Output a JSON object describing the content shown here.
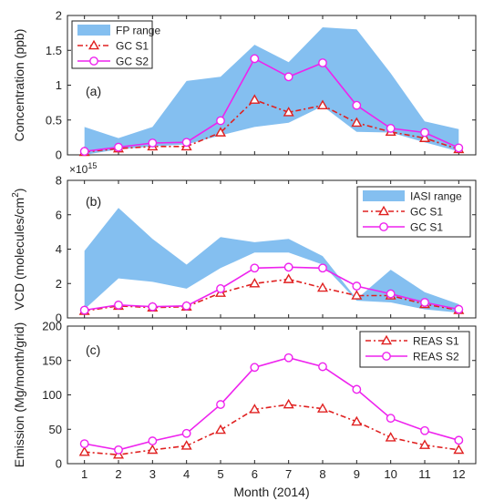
{
  "chart_data": [
    {
      "type": "area",
      "panel_label": "(a)",
      "xlabel": "",
      "ylabel": "Concentration (ppb)",
      "x": [
        1,
        2,
        3,
        4,
        5,
        6,
        7,
        8,
        9,
        10,
        11,
        12
      ],
      "xlim": [
        0.5,
        12.5
      ],
      "ylim": [
        0,
        2
      ],
      "yticks": [
        0,
        0.5,
        1,
        1.5,
        2
      ],
      "ytick_labels": [
        "0",
        "0.5",
        "1",
        "1.5",
        "2"
      ],
      "range_band": {
        "name": "FP range",
        "color": "#84bff0",
        "low": [
          0.0,
          0.08,
          0.12,
          0.15,
          0.28,
          0.4,
          0.46,
          0.7,
          0.33,
          0.32,
          0.18,
          0.05
        ],
        "high": [
          0.4,
          0.24,
          0.4,
          1.06,
          1.12,
          1.58,
          1.33,
          1.83,
          1.8,
          1.17,
          0.48,
          0.37
        ]
      },
      "series": [
        {
          "name": "GC S1",
          "color": "#e02020",
          "dash": true,
          "marker": "triangle",
          "values": [
            0.04,
            0.09,
            0.12,
            0.12,
            0.32,
            0.79,
            0.61,
            0.71,
            0.46,
            0.33,
            0.24,
            0.08
          ]
        },
        {
          "name": "GC S2",
          "color": "#ee22ee",
          "dash": false,
          "marker": "circle",
          "values": [
            0.05,
            0.11,
            0.17,
            0.18,
            0.49,
            1.38,
            1.12,
            1.32,
            0.71,
            0.38,
            0.32,
            0.1
          ]
        }
      ],
      "legend_position": "top-left"
    },
    {
      "type": "area",
      "panel_label": "(b)",
      "exponent_label": "×10",
      "exponent_power": "15",
      "xlabel": "",
      "ylabel_main": "VCD (molecules/cm",
      "ylabel_sup": "2",
      "ylabel_end": ")",
      "x": [
        1,
        2,
        3,
        4,
        5,
        6,
        7,
        8,
        9,
        10,
        11,
        12
      ],
      "xlim": [
        0.5,
        12.5
      ],
      "ylim": [
        0,
        8
      ],
      "yticks": [
        0,
        2,
        4,
        6,
        8
      ],
      "ytick_labels": [
        "0",
        "2",
        "4",
        "6",
        "8"
      ],
      "range_band": {
        "name": "IASI range",
        "color": "#84bff0",
        "low": [
          0.5,
          2.3,
          2.1,
          1.7,
          2.9,
          3.8,
          3.8,
          3.1,
          1.0,
          0.9,
          0.5,
          0.3
        ],
        "high": [
          3.9,
          6.4,
          4.6,
          3.1,
          4.7,
          4.4,
          4.6,
          3.6,
          1.1,
          2.8,
          1.5,
          0.8
        ]
      },
      "series": [
        {
          "name": "GC S1",
          "color": "#e02020",
          "dash": true,
          "marker": "triangle",
          "values": [
            0.4,
            0.7,
            0.6,
            0.65,
            1.45,
            2.0,
            2.25,
            1.75,
            1.3,
            1.3,
            0.8,
            0.45
          ]
        },
        {
          "name": "GC S1",
          "color": "#ee22ee",
          "dash": false,
          "marker": "circle",
          "values": [
            0.45,
            0.75,
            0.65,
            0.7,
            1.7,
            2.9,
            2.95,
            2.9,
            1.85,
            1.4,
            0.9,
            0.5
          ]
        }
      ],
      "legend_position": "top-right"
    },
    {
      "type": "line",
      "panel_label": "(c)",
      "xlabel": "Month (2014)",
      "ylabel": "Emission (Mg/month/grid)",
      "x": [
        1,
        2,
        3,
        4,
        5,
        6,
        7,
        8,
        9,
        10,
        11,
        12
      ],
      "xlim": [
        0.5,
        12.5
      ],
      "ylim": [
        0,
        200
      ],
      "yticks": [
        0,
        50,
        100,
        150,
        200
      ],
      "ytick_labels": [
        "0",
        "50",
        "100",
        "150",
        "200"
      ],
      "series": [
        {
          "name": "REAS S1",
          "color": "#e02020",
          "dash": true,
          "marker": "triangle",
          "values": [
            17,
            13,
            20,
            26,
            49,
            79,
            86,
            80,
            61,
            38,
            27,
            20
          ]
        },
        {
          "name": "REAS S2",
          "color": "#ee22ee",
          "dash": false,
          "marker": "circle",
          "values": [
            29,
            20,
            33,
            44,
            86,
            140,
            154,
            141,
            108,
            66,
            48,
            34
          ]
        }
      ],
      "legend_position": "top-right"
    }
  ],
  "x_tick_labels": [
    "1",
    "2",
    "3",
    "4",
    "5",
    "6",
    "7",
    "8",
    "9",
    "10",
    "11",
    "12"
  ]
}
